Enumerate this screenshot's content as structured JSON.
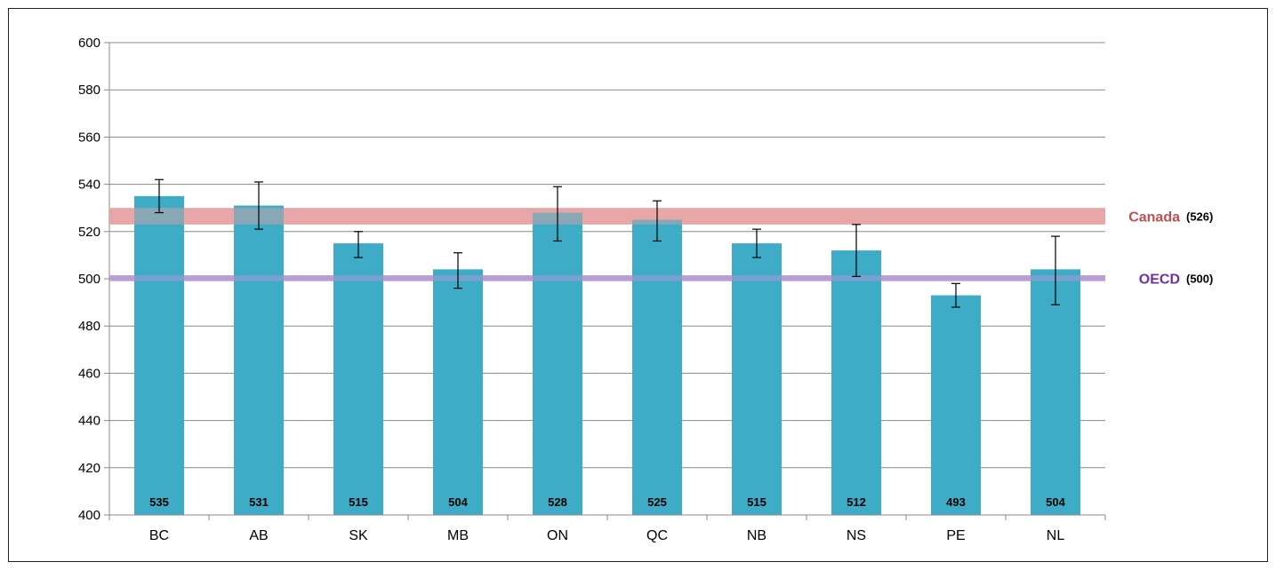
{
  "chart_data": {
    "type": "bar",
    "categories": [
      "BC",
      "AB",
      "SK",
      "MB",
      "ON",
      "QC",
      "NB",
      "NS",
      "PE",
      "NL"
    ],
    "values": [
      535,
      531,
      515,
      504,
      528,
      525,
      515,
      512,
      493,
      504
    ],
    "data_labels": [
      "535",
      "531",
      "515",
      "504",
      "528",
      "525",
      "515",
      "512",
      "493",
      "504"
    ],
    "error_bars": [
      [
        528,
        542
      ],
      [
        521,
        541
      ],
      [
        509,
        520
      ],
      [
        496,
        511
      ],
      [
        516,
        539
      ],
      [
        516,
        533
      ],
      [
        509,
        521
      ],
      [
        501,
        523
      ],
      [
        488,
        498
      ],
      [
        489,
        518
      ]
    ],
    "ylim": [
      400,
      600
    ],
    "yticks": [
      "400",
      "420",
      "440",
      "460",
      "480",
      "500",
      "520",
      "540",
      "560",
      "580",
      "600"
    ],
    "grid": true,
    "bar_color": "#3eabc7",
    "reference_bands": [
      {
        "name": "Canada",
        "value_label": "(526)",
        "range": [
          523,
          530
        ],
        "color": "#e6a2a2",
        "text_color": "#c0504d"
      },
      {
        "name": "OECD",
        "value_label": "(500)",
        "range": [
          499,
          501.5
        ],
        "color": "#b79ad4",
        "text_color": "#7030a0"
      }
    ]
  }
}
